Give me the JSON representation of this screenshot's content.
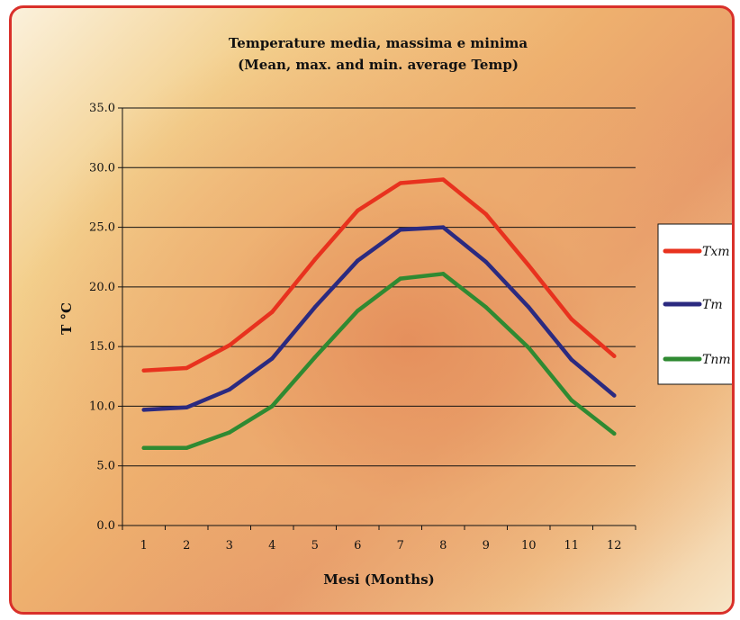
{
  "chart_data": {
    "type": "line",
    "title": "Temperature media, massima e minima",
    "subtitle": "(Mean, max. and min. average Temp)",
    "xlabel": "Mesi  (Months)",
    "ylabel": "T °C",
    "categories": [
      "1",
      "2",
      "3",
      "4",
      "5",
      "6",
      "7",
      "8",
      "9",
      "10",
      "11",
      "12"
    ],
    "yticks": [
      "0.0",
      "5.0",
      "10.0",
      "15.0",
      "20.0",
      "25.0",
      "30.0",
      "35.0"
    ],
    "ylim": [
      0,
      35
    ],
    "grid": true,
    "legend_position": "right",
    "series": [
      {
        "name": "Txm",
        "color": "#e8321e",
        "values": [
          13.0,
          13.2,
          15.1,
          17.9,
          22.3,
          26.4,
          28.7,
          29.0,
          26.1,
          21.8,
          17.3,
          14.2
        ]
      },
      {
        "name": "Tm",
        "color": "#2b2a80",
        "values": [
          9.7,
          9.9,
          11.4,
          14.0,
          18.3,
          22.2,
          24.8,
          25.0,
          22.1,
          18.3,
          13.9,
          10.9
        ]
      },
      {
        "name": "Tnm",
        "color": "#2f8a32",
        "values": [
          6.5,
          6.5,
          7.8,
          10.0,
          14.1,
          18.0,
          20.7,
          21.1,
          18.3,
          14.9,
          10.5,
          7.7
        ]
      }
    ]
  }
}
